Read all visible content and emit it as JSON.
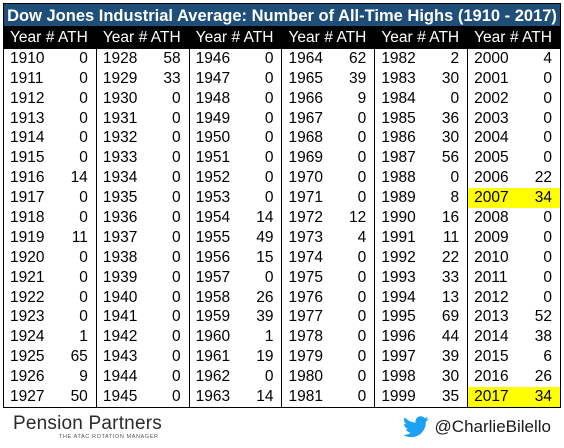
{
  "title": "Dow Jones Industrial Average: Number of All-Time Highs (1910 - 2017)",
  "headers": {
    "year": "Year",
    "ath": "# ATH"
  },
  "colors": {
    "title_bg": "#1f4e79",
    "header_bg": "#000000",
    "highlight": "#ffff00",
    "twitter": "#1da1f2"
  },
  "groups": [
    [
      [
        "1910",
        "0"
      ],
      [
        "1911",
        "0"
      ],
      [
        "1912",
        "0"
      ],
      [
        "1913",
        "0"
      ],
      [
        "1914",
        "0"
      ],
      [
        "1915",
        "0"
      ],
      [
        "1916",
        "14"
      ],
      [
        "1917",
        "0"
      ],
      [
        "1918",
        "0"
      ],
      [
        "1919",
        "11"
      ],
      [
        "1920",
        "0"
      ],
      [
        "1921",
        "0"
      ],
      [
        "1922",
        "0"
      ],
      [
        "1923",
        "0"
      ],
      [
        "1924",
        "1"
      ],
      [
        "1925",
        "65"
      ],
      [
        "1926",
        "9"
      ],
      [
        "1927",
        "50"
      ]
    ],
    [
      [
        "1928",
        "58"
      ],
      [
        "1929",
        "33"
      ],
      [
        "1930",
        "0"
      ],
      [
        "1931",
        "0"
      ],
      [
        "1932",
        "0"
      ],
      [
        "1933",
        "0"
      ],
      [
        "1934",
        "0"
      ],
      [
        "1935",
        "0"
      ],
      [
        "1936",
        "0"
      ],
      [
        "1937",
        "0"
      ],
      [
        "1938",
        "0"
      ],
      [
        "1939",
        "0"
      ],
      [
        "1940",
        "0"
      ],
      [
        "1941",
        "0"
      ],
      [
        "1942",
        "0"
      ],
      [
        "1943",
        "0"
      ],
      [
        "1944",
        "0"
      ],
      [
        "1945",
        "0"
      ]
    ],
    [
      [
        "1946",
        "0"
      ],
      [
        "1947",
        "0"
      ],
      [
        "1948",
        "0"
      ],
      [
        "1949",
        "0"
      ],
      [
        "1950",
        "0"
      ],
      [
        "1951",
        "0"
      ],
      [
        "1952",
        "0"
      ],
      [
        "1953",
        "0"
      ],
      [
        "1954",
        "14"
      ],
      [
        "1955",
        "49"
      ],
      [
        "1956",
        "15"
      ],
      [
        "1957",
        "0"
      ],
      [
        "1958",
        "26"
      ],
      [
        "1959",
        "39"
      ],
      [
        "1960",
        "1"
      ],
      [
        "1961",
        "19"
      ],
      [
        "1962",
        "0"
      ],
      [
        "1963",
        "14"
      ]
    ],
    [
      [
        "1964",
        "62"
      ],
      [
        "1965",
        "39"
      ],
      [
        "1966",
        "9"
      ],
      [
        "1967",
        "0"
      ],
      [
        "1968",
        "0"
      ],
      [
        "1969",
        "0"
      ],
      [
        "1970",
        "0"
      ],
      [
        "1971",
        "0"
      ],
      [
        "1972",
        "12"
      ],
      [
        "1973",
        "4"
      ],
      [
        "1974",
        "0"
      ],
      [
        "1975",
        "0"
      ],
      [
        "1976",
        "0"
      ],
      [
        "1977",
        "0"
      ],
      [
        "1978",
        "0"
      ],
      [
        "1979",
        "0"
      ],
      [
        "1980",
        "0"
      ],
      [
        "1981",
        "0"
      ]
    ],
    [
      [
        "1982",
        "2"
      ],
      [
        "1983",
        "30"
      ],
      [
        "1984",
        "0"
      ],
      [
        "1985",
        "36"
      ],
      [
        "1986",
        "30"
      ],
      [
        "1987",
        "56"
      ],
      [
        "1988",
        "0"
      ],
      [
        "1989",
        "8"
      ],
      [
        "1990",
        "16"
      ],
      [
        "1991",
        "11"
      ],
      [
        "1992",
        "22"
      ],
      [
        "1993",
        "33"
      ],
      [
        "1994",
        "13"
      ],
      [
        "1995",
        "69"
      ],
      [
        "1996",
        "44"
      ],
      [
        "1997",
        "39"
      ],
      [
        "1998",
        "30"
      ],
      [
        "1999",
        "35"
      ]
    ],
    [
      [
        "2000",
        "4"
      ],
      [
        "2001",
        "0"
      ],
      [
        "2002",
        "0"
      ],
      [
        "2003",
        "0"
      ],
      [
        "2004",
        "0"
      ],
      [
        "2005",
        "0"
      ],
      [
        "2006",
        "22"
      ],
      [
        "2007",
        "34"
      ],
      [
        "2008",
        "0"
      ],
      [
        "2009",
        "0"
      ],
      [
        "2010",
        "0"
      ],
      [
        "2011",
        "0"
      ],
      [
        "2012",
        "0"
      ],
      [
        "2013",
        "52"
      ],
      [
        "2014",
        "38"
      ],
      [
        "2015",
        "6"
      ],
      [
        "2016",
        "26"
      ],
      [
        "2017",
        "34"
      ]
    ]
  ],
  "highlighted_years": [
    "2007",
    "2017"
  ],
  "footer": {
    "logo_name": "Pension Partners",
    "logo_tagline": "THE ATAC ROTATION MANAGER",
    "handle": "@CharlieBilello",
    "handle_icon": "twitter-bird-icon"
  }
}
